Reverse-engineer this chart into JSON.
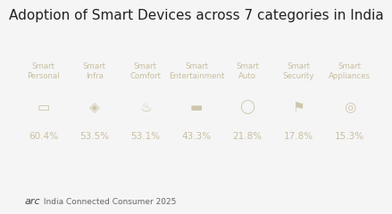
{
  "title": "Adoption of Smart Devices across 7 categories in India",
  "title_fontsize": 11,
  "bg_color": "#f5f5f5",
  "panel_color": "#1a1a1a",
  "panel_text_color": "#c8bfa0",
  "categories": [
    "Smart\nPersonal",
    "Smart\nInfra",
    "Smart\nComfort",
    "Smart\nEntertainment",
    "Smart\nAuto",
    "Smart\nSecurity",
    "Smart\nAppliances"
  ],
  "values": [
    "60.4%",
    "53.5%",
    "53.1%",
    "43.3%",
    "21.8%",
    "17.8%",
    "15.3%"
  ],
  "footer_brand": "arc",
  "footer_text": " India Connected Consumer 2025",
  "footer_fontsize": 7
}
